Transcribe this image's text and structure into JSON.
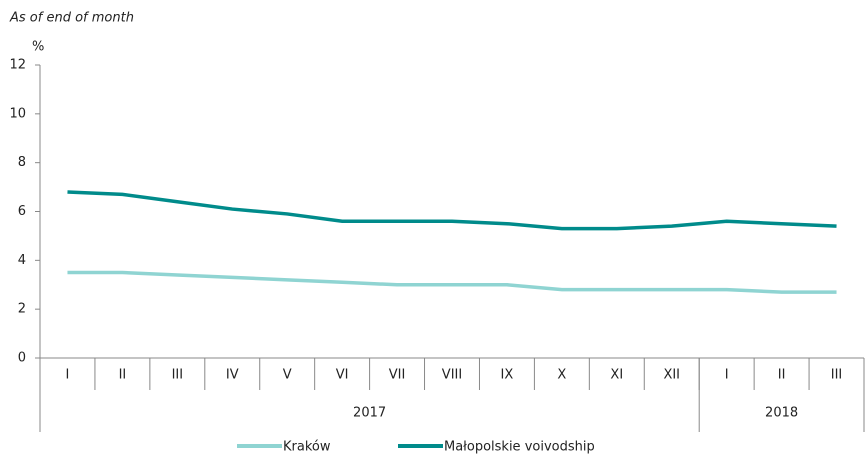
{
  "chart_data": {
    "type": "line",
    "subtitle": "As of end of month",
    "y_label": "%",
    "categories": [
      "I",
      "II",
      "III",
      "IV",
      "V",
      "VI",
      "VII",
      "VIII",
      "IX",
      "X",
      "XI",
      "XII",
      "I",
      "II",
      "III"
    ],
    "groups": [
      {
        "label": "2017",
        "span": 12
      },
      {
        "label": "2018",
        "span": 3
      }
    ],
    "series": [
      {
        "name": "Kraków",
        "color": "#8fd4d2",
        "values": [
          3.5,
          3.5,
          3.4,
          3.3,
          3.2,
          3.1,
          3.0,
          3.0,
          3.0,
          2.8,
          2.8,
          2.8,
          2.8,
          2.7,
          2.7
        ]
      },
      {
        "name": "Małopolskie voivodship",
        "color": "#008b8b",
        "values": [
          6.8,
          6.7,
          6.4,
          6.1,
          5.9,
          5.6,
          5.6,
          5.6,
          5.5,
          5.3,
          5.3,
          5.4,
          5.6,
          5.5,
          5.4
        ]
      }
    ],
    "ylim": [
      0,
      12
    ],
    "yticks": [
      0,
      2,
      4,
      6,
      8,
      10,
      12
    ],
    "grid": false,
    "legend": "bottom"
  }
}
